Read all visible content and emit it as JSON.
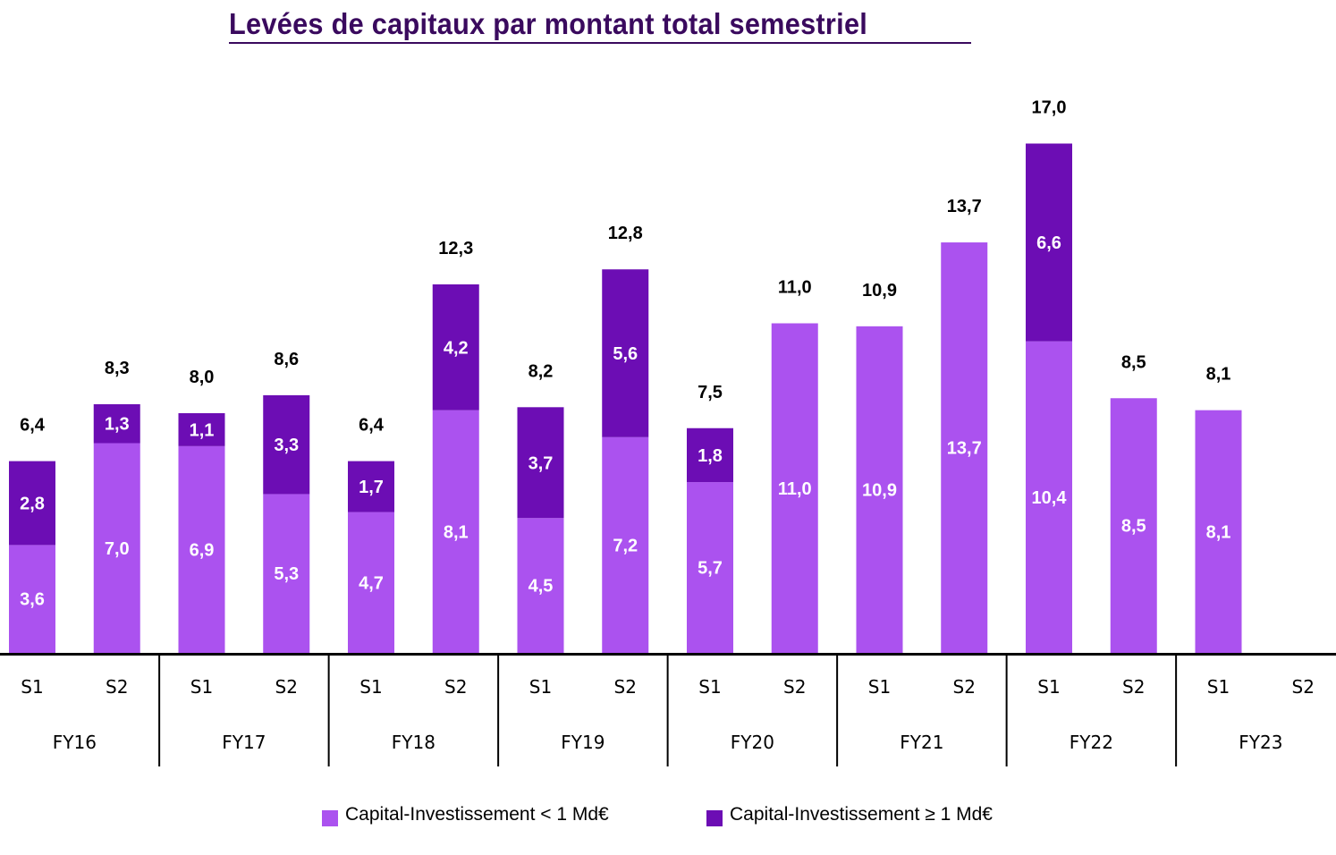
{
  "chart_data": {
    "type": "bar",
    "stacked": true,
    "title": "Levées de capitaux par montant total semestriel",
    "xlabel": "",
    "ylabel": "",
    "ylim": [
      0,
      17.0
    ],
    "grid": false,
    "legend_position": "bottom",
    "fiscal_years": [
      "FY16",
      "FY17",
      "FY18",
      "FY19",
      "FY20",
      "FY21",
      "FY22",
      "FY23"
    ],
    "semesters": [
      "S1",
      "S2"
    ],
    "categories": [
      "FY16 S1",
      "FY16 S2",
      "FY17 S1",
      "FY17 S2",
      "FY18 S1",
      "FY18 S2",
      "FY19 S1",
      "FY19 S2",
      "FY20 S1",
      "FY20 S2",
      "FY21 S1",
      "FY21 S2",
      "FY22 S1",
      "FY22 S2",
      "FY23 S1",
      "FY23 S2"
    ],
    "series": [
      {
        "name": "Capital-Investissement < 1 Md€",
        "color": "#ab52ef",
        "values": [
          3.6,
          7.0,
          6.9,
          5.3,
          4.7,
          8.1,
          4.5,
          7.2,
          5.7,
          11.0,
          10.9,
          13.7,
          10.4,
          8.5,
          8.1,
          null
        ],
        "labels": [
          "3,6",
          "7,0",
          "6,9",
          "5,3",
          "4,7",
          "8,1",
          "4,5",
          "7,2",
          "5,7",
          "11,0",
          "10,9",
          "13,7",
          "10,4",
          "8,5",
          "8,1",
          null
        ]
      },
      {
        "name": "Capital-Investissement ≥ 1 Md€",
        "color": "#6c0db4",
        "values": [
          2.8,
          1.3,
          1.1,
          3.3,
          1.7,
          4.2,
          3.7,
          5.6,
          1.8,
          0,
          0,
          0,
          6.6,
          0,
          0,
          null
        ],
        "labels": [
          "2,8",
          "1,3",
          "1,1",
          "3,3",
          "1,7",
          "4,2",
          "3,7",
          "5,6",
          "1,8",
          null,
          null,
          null,
          "6,6",
          null,
          null,
          null
        ]
      }
    ],
    "totals": [
      6.4,
      8.3,
      8.0,
      8.6,
      6.4,
      12.3,
      8.2,
      12.8,
      7.5,
      11.0,
      10.9,
      13.7,
      17.0,
      8.5,
      8.1,
      null
    ],
    "total_labels": [
      "6,4",
      "8,3",
      "8,0",
      "8,6",
      "6,4",
      "12,3",
      "8,2",
      "12,8",
      "7,5",
      "11,0",
      "10,9",
      "13,7",
      "17,0",
      "8,5",
      "8,1",
      null
    ]
  },
  "legend": [
    {
      "label": "Capital-Investissement < 1 Md€",
      "color": "#ab52ef"
    },
    {
      "label": "Capital-Investissement ≥ 1 Md€",
      "color": "#6c0db4"
    }
  ],
  "colors": {
    "title": "#3a0a5e",
    "axis": "#000000"
  }
}
